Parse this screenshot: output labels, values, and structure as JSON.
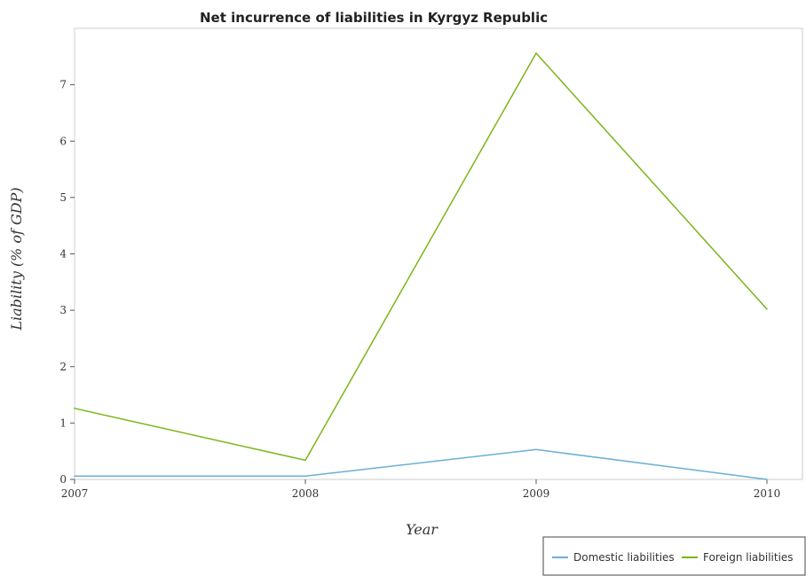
{
  "chart_data": {
    "type": "line",
    "title": "Net incurrence of liabilities in Kyrgyz Republic",
    "xlabel": "Year",
    "ylabel": "Liability (% of GDP)",
    "categories": [
      "2007",
      "2008",
      "2009",
      "2010"
    ],
    "ylim": [
      0,
      8
    ],
    "yticks": [
      0,
      1,
      2,
      3,
      4,
      5,
      6,
      7
    ],
    "grid": false,
    "legend_position": "bottom-right",
    "series": [
      {
        "name": "Domestic liabilities",
        "color": "#6baed6",
        "values": [
          0.06,
          0.06,
          0.53,
          0
        ]
      },
      {
        "name": "Foreign liabilities",
        "color": "#7cb518",
        "values": [
          1.26,
          0.34,
          7.56,
          3.02
        ]
      }
    ]
  }
}
